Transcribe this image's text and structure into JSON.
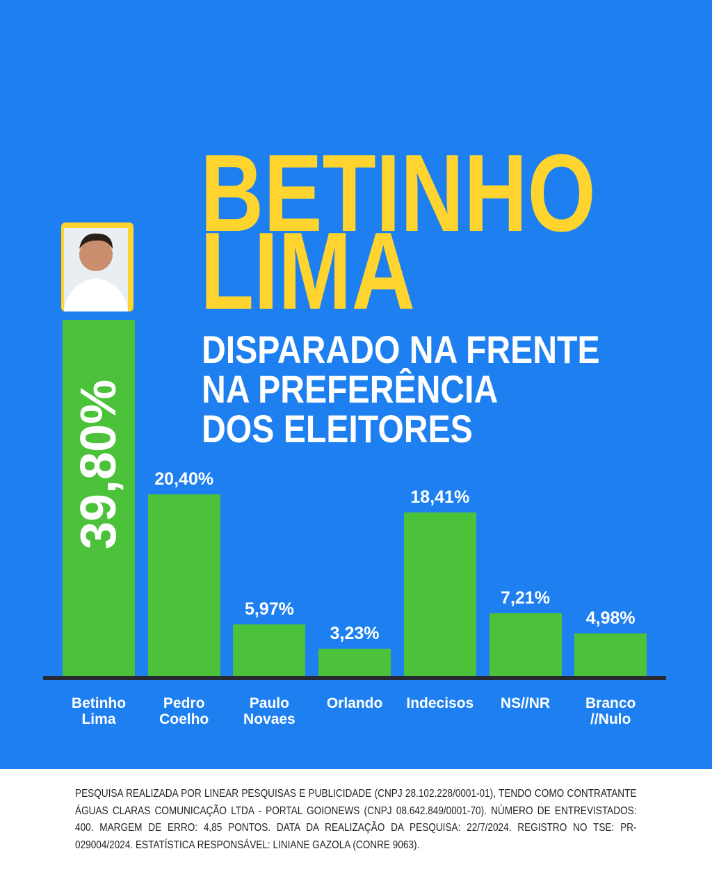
{
  "chart_data": {
    "type": "bar",
    "title": [
      "BETINHO",
      "LIMA"
    ],
    "subtitle": [
      "DISPARADO NA FRENTE",
      "NA PREFERÊNCIA",
      "DOS ELEITORES"
    ],
    "categories": [
      "Betinho Lima",
      "Pedro Coelho",
      "Paulo Novaes",
      "Orlando",
      "Indecisos",
      "NS//NR",
      "Branco //Nulo"
    ],
    "values": [
      39.8,
      20.4,
      5.97,
      3.23,
      18.41,
      7.21,
      4.98
    ],
    "value_labels": [
      "39,80%",
      "20,40%",
      "5,97%",
      "3,23%",
      "18,41%",
      "7,21%",
      "4,98%"
    ],
    "color": "#4cc23a",
    "note": "PESQUISA REALIZADA POR LINEAR PESQUISAS E PUBLICIDADE (CNPJ 28.102.228/0001-01), TENDO COMO CONTRATANTE ÁGUAS CLARAS COMUNICAÇÃO LTDA - PORTAL GOIONEWS (CNPJ 08.642.849/0001-70). NÚMERO DE ENTREVISTADOS: 400. MARGEM DE ERRO: 4,85 PONTOS. DATA DA REALIZAÇÃO DA PESQUISA: 22/7/2024. REGISTRO NO TSE: PR-029004/2024. ESTATÍSTICA RESPONSÁVEL: LINIANE GAZOLA (CONRE 9063)."
  }
}
